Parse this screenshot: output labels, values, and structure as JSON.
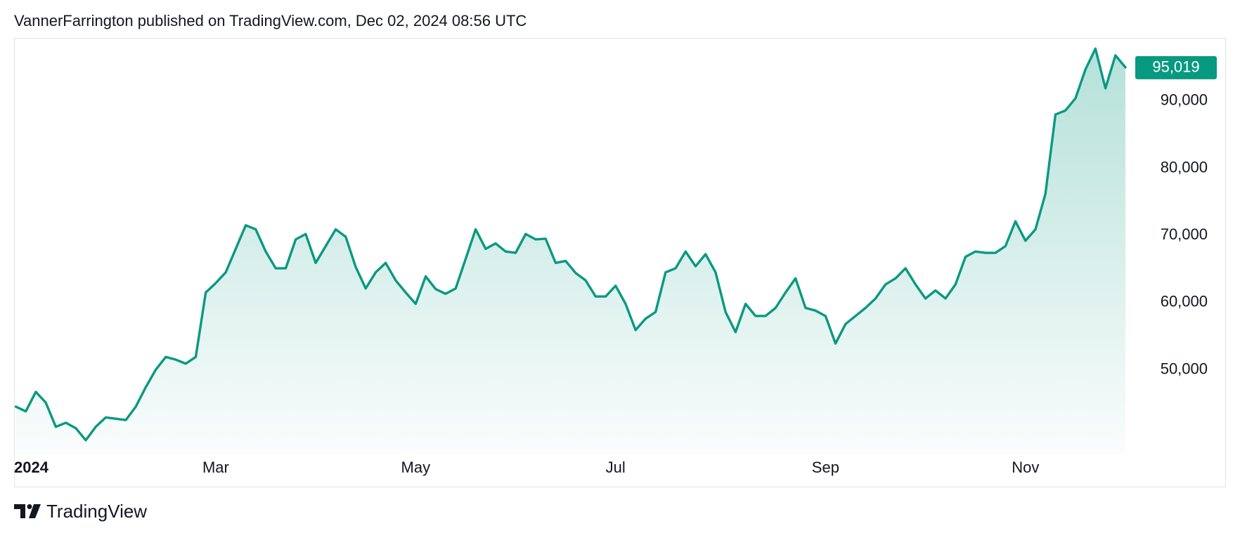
{
  "chart_data": {
    "type": "line",
    "title": "VannerFarrington published on TradingView.com, Dec 02, 2024 08:56 UTC",
    "attribution": "TradingView",
    "color": "#089981",
    "grid": false,
    "categories": [
      "2024",
      null,
      null,
      null,
      null,
      null,
      null,
      null,
      null,
      null,
      null,
      null,
      null,
      null,
      null,
      null,
      null,
      null,
      null,
      null,
      "Mar",
      null,
      null,
      null,
      null,
      null,
      null,
      null,
      null,
      null,
      null,
      null,
      null,
      null,
      null,
      null,
      null,
      null,
      null,
      null,
      "May",
      null,
      null,
      null,
      null,
      null,
      null,
      null,
      null,
      null,
      null,
      null,
      null,
      null,
      null,
      null,
      null,
      null,
      null,
      null,
      "Jul",
      null,
      null,
      null,
      null,
      null,
      null,
      null,
      null,
      null,
      null,
      null,
      null,
      null,
      null,
      null,
      null,
      null,
      null,
      null,
      null,
      "Sep",
      null,
      null,
      null,
      null,
      null,
      null,
      null,
      null,
      null,
      null,
      null,
      null,
      null,
      null,
      null,
      null,
      null,
      null,
      null,
      "Nov",
      null,
      null,
      null,
      null,
      null,
      null,
      null,
      null,
      null,
      null
    ],
    "values": [
      44500,
      43800,
      46700,
      45100,
      41500,
      42100,
      41300,
      39500,
      41500,
      42900,
      42700,
      42500,
      44500,
      47400,
      50000,
      51900,
      51500,
      50900,
      51900,
      61500,
      62900,
      64500,
      68000,
      71500,
      70900,
      67600,
      65100,
      65100,
      69400,
      70200,
      65900,
      68400,
      70900,
      69800,
      65300,
      62100,
      64500,
      65900,
      63300,
      61500,
      59800,
      63900,
      62000,
      61300,
      62100,
      66500,
      70900,
      68000,
      68800,
      67600,
      67400,
      70200,
      69400,
      69500,
      65900,
      66200,
      64400,
      63300,
      60900,
      60900,
      62500,
      59800,
      55900,
      57600,
      58600,
      64500,
      65100,
      67600,
      65400,
      67200,
      64500,
      58600,
      55600,
      59800,
      58000,
      58000,
      59200,
      61500,
      63600,
      59200,
      58800,
      58000,
      53900,
      56800,
      58000,
      59200,
      60600,
      62700,
      63600,
      65100,
      62700,
      60600,
      61800,
      60600,
      62700,
      66800,
      67600,
      67400,
      67400,
      68400,
      72100,
      69200,
      70900,
      76200,
      88000,
      88600,
      90400,
      94700,
      97800,
      91900,
      96800,
      95019
    ],
    "value_labels": [
      null,
      null,
      null,
      null,
      null,
      null,
      null,
      null,
      null,
      null,
      null,
      null,
      null,
      null,
      null,
      null,
      null,
      null,
      null,
      null,
      null,
      null,
      null,
      null,
      null,
      null,
      null,
      null,
      null,
      null,
      null,
      null,
      null,
      null,
      null,
      null,
      null,
      null,
      null,
      null,
      null,
      null,
      null,
      null,
      null,
      null,
      null,
      null,
      null,
      null,
      null,
      null,
      null,
      null,
      null,
      null,
      null,
      null,
      null,
      null,
      null,
      null,
      null,
      null,
      null,
      null,
      null,
      null,
      null,
      null,
      null,
      null,
      null,
      null,
      null,
      null,
      null,
      null,
      null,
      null,
      null,
      null,
      null,
      null,
      null,
      null,
      null,
      null,
      null,
      null,
      null,
      null,
      null,
      null,
      null,
      null,
      null,
      null,
      null,
      null,
      null,
      null,
      null,
      null,
      null,
      null,
      null,
      null,
      null,
      null,
      null,
      "95,019"
    ],
    "ylim": [
      37400,
      99400
    ],
    "yticks": [
      {
        "value": 50000,
        "label": "50,000"
      },
      {
        "value": 60000,
        "label": "60,000"
      },
      {
        "value": 70000,
        "label": "70,000"
      },
      {
        "value": 80000,
        "label": "80,000"
      },
      {
        "value": 90000,
        "label": "90,000"
      }
    ]
  }
}
